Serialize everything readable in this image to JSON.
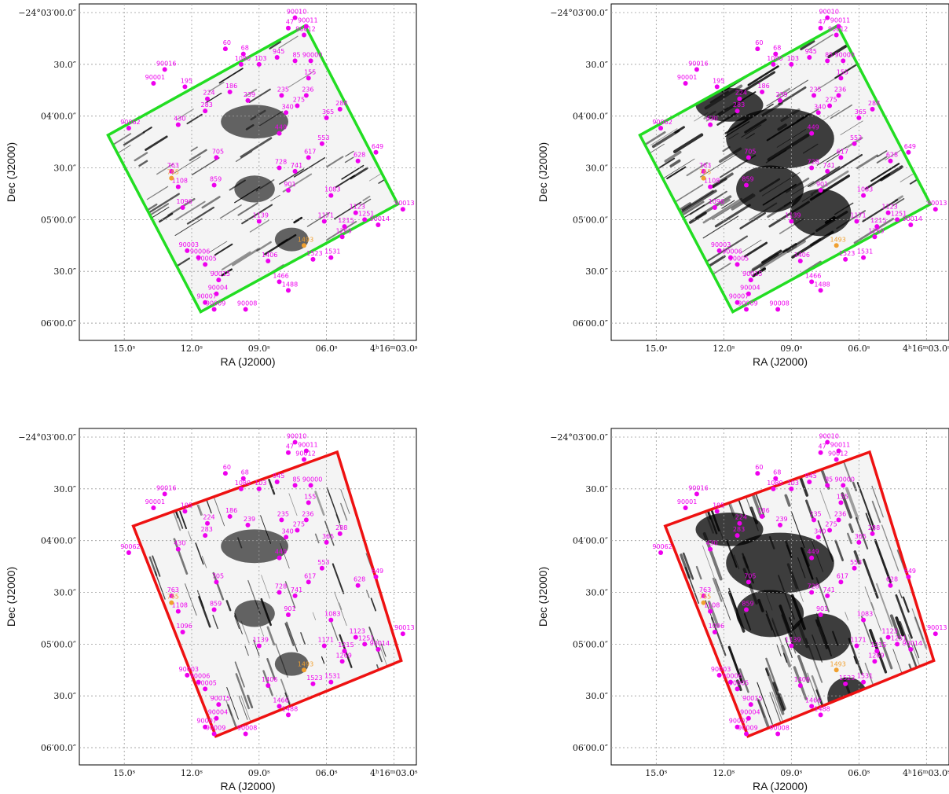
{
  "colors": {
    "source_marker": "#ee00ee",
    "highlight_marker": "#f0a030",
    "green_footprint": "#22dd22",
    "red_footprint": "#ee1111",
    "grid": "#9a9a9a",
    "streak": "#000000"
  },
  "axes": {
    "xlabel": "RA (J2000)",
    "ylabel": "Dec (J2000)",
    "ra_ticks": [
      {
        "label": "15.0ˢ",
        "ra_sec": 15.0
      },
      {
        "label": "12.0ˢ",
        "ra_sec": 12.0
      },
      {
        "label": "09.0ˢ",
        "ra_sec": 9.0
      },
      {
        "label": "06.0ˢ",
        "ra_sec": 6.0
      },
      {
        "label": "4ʰ16ᵐ03.0ˢ",
        "ra_sec": 3.0
      }
    ],
    "dec_ticks": [
      {
        "label": "−24°03′00.0″",
        "dec_arcsec": 0
      },
      {
        "label": "30.0″",
        "dec_arcsec": 30
      },
      {
        "label": "04′00.0″",
        "dec_arcsec": 60
      },
      {
        "label": "30.0″",
        "dec_arcsec": 90
      },
      {
        "label": "05′00.0″",
        "dec_arcsec": 120
      },
      {
        "label": "30.0″",
        "dec_arcsec": 150
      },
      {
        "label": "06′00.0″",
        "dec_arcsec": 180
      }
    ]
  },
  "chart_data": [
    {
      "type": "scatter",
      "panel": "top-left",
      "footprint_color": "green",
      "footprint_angle_deg": -32,
      "density": "light",
      "xlabel": "RA (J2000)",
      "ylabel": "Dec (J2000)",
      "xlim": [
        17.0,
        2.0
      ],
      "ylim": [
        -5,
        190
      ],
      "grid": true
    },
    {
      "type": "scatter",
      "panel": "top-right",
      "footprint_color": "green",
      "footprint_angle_deg": -32,
      "density": "heavy",
      "xlabel": "RA (J2000)",
      "ylabel": "Dec (J2000)",
      "xlim": [
        17.0,
        2.0
      ],
      "ylim": [
        -5,
        190
      ],
      "grid": true
    },
    {
      "type": "scatter",
      "panel": "bottom-left",
      "footprint_color": "red",
      "footprint_angle_deg": 20,
      "density": "light",
      "xlabel": "RA (J2000)",
      "ylabel": "Dec (J2000)",
      "xlim": [
        17.0,
        2.0
      ],
      "ylim": [
        -5,
        190
      ],
      "grid": true
    },
    {
      "type": "scatter",
      "panel": "bottom-right",
      "footprint_color": "red",
      "footprint_angle_deg": 20,
      "density": "heavy",
      "xlabel": "RA (J2000)",
      "ylabel": "Dec (J2000)",
      "xlim": [
        17.0,
        2.0
      ],
      "ylim": [
        -5,
        190
      ],
      "grid": true
    }
  ],
  "sources": [
    {
      "id": "90010",
      "ra": 7.4,
      "dec": 3
    },
    {
      "id": "47",
      "ra": 7.7,
      "dec": 9
    },
    {
      "id": "90011",
      "ra": 6.9,
      "dec": 8
    },
    {
      "id": "90012",
      "ra": 7.0,
      "dec": 13
    },
    {
      "id": "60",
      "ra": 10.5,
      "dec": 21
    },
    {
      "id": "68",
      "ra": 9.7,
      "dec": 24
    },
    {
      "id": "1080",
      "ra": 9.8,
      "dec": 30
    },
    {
      "id": "103",
      "ra": 9.0,
      "dec": 30
    },
    {
      "id": "945",
      "ra": 8.2,
      "dec": 26
    },
    {
      "id": "85",
      "ra": 7.4,
      "dec": 28
    },
    {
      "id": "90000",
      "ra": 6.7,
      "dec": 28
    },
    {
      "id": "90016",
      "ra": 13.2,
      "dec": 33
    },
    {
      "id": "90001",
      "ra": 13.7,
      "dec": 41
    },
    {
      "id": "195",
      "ra": 12.3,
      "dec": 43
    },
    {
      "id": "155",
      "ra": 6.8,
      "dec": 38
    },
    {
      "id": "186",
      "ra": 10.3,
      "dec": 46
    },
    {
      "id": "224",
      "ra": 11.3,
      "dec": 50
    },
    {
      "id": "239",
      "ra": 9.5,
      "dec": 51
    },
    {
      "id": "235",
      "ra": 8.0,
      "dec": 48
    },
    {
      "id": "236",
      "ra": 6.9,
      "dec": 48
    },
    {
      "id": "275",
      "ra": 7.3,
      "dec": 54
    },
    {
      "id": "283",
      "ra": 11.4,
      "dec": 57
    },
    {
      "id": "288",
      "ra": 5.4,
      "dec": 56
    },
    {
      "id": "340",
      "ra": 7.8,
      "dec": 58
    },
    {
      "id": "365",
      "ra": 6.0,
      "dec": 61
    },
    {
      "id": "90062",
      "ra": 14.8,
      "dec": 67
    },
    {
      "id": "430",
      "ra": 12.6,
      "dec": 65
    },
    {
      "id": "449",
      "ra": 8.1,
      "dec": 70
    },
    {
      "id": "553",
      "ra": 6.2,
      "dec": 76
    },
    {
      "id": "617",
      "ra": 6.8,
      "dec": 84
    },
    {
      "id": "649",
      "ra": 3.8,
      "dec": 81
    },
    {
      "id": "628",
      "ra": 4.6,
      "dec": 86
    },
    {
      "id": "705",
      "ra": 10.9,
      "dec": 84
    },
    {
      "id": "741",
      "ra": 7.4,
      "dec": 92
    },
    {
      "id": "763",
      "ra": 12.9,
      "dec": 92
    },
    {
      "id": "728",
      "ra": 8.1,
      "dec": 90
    },
    {
      "id": "859",
      "ra": 11.0,
      "dec": 100
    },
    {
      "id": "901",
      "ra": 7.7,
      "dec": 103
    },
    {
      "id": "1083",
      "ra": 5.8,
      "dec": 106
    },
    {
      "id": "1108",
      "ra": 12.6,
      "dec": 101
    },
    {
      "id": "1096",
      "ra": 12.4,
      "dec": 113
    },
    {
      "id": "1139",
      "ra": 9.0,
      "dec": 121
    },
    {
      "id": "1171",
      "ra": 6.1,
      "dec": 121
    },
    {
      "id": "1123",
      "ra": 4.7,
      "dec": 116
    },
    {
      "id": "1215",
      "ra": 5.2,
      "dec": 124
    },
    {
      "id": "1269",
      "ra": 5.3,
      "dec": 130
    },
    {
      "id": "90013",
      "ra": 2.6,
      "dec": 114
    },
    {
      "id": "90014",
      "ra": 3.7,
      "dec": 123
    },
    {
      "id": "90003",
      "ra": 12.2,
      "dec": 138
    },
    {
      "id": "90006",
      "ra": 11.7,
      "dec": 142
    },
    {
      "id": "90005",
      "ra": 11.4,
      "dec": 146
    },
    {
      "id": "1406",
      "ra": 8.6,
      "dec": 144
    },
    {
      "id": "1466",
      "ra": 8.1,
      "dec": 156
    },
    {
      "id": "1488",
      "ra": 7.7,
      "dec": 161
    },
    {
      "id": "1523",
      "ra": 6.6,
      "dec": 143
    },
    {
      "id": "1531",
      "ra": 5.8,
      "dec": 142
    },
    {
      "id": "90015",
      "ra": 10.8,
      "dec": 155
    },
    {
      "id": "90004",
      "ra": 10.9,
      "dec": 163
    },
    {
      "id": "90007",
      "ra": 11.4,
      "dec": 168
    },
    {
      "id": "90009",
      "ra": 11.0,
      "dec": 172
    },
    {
      "id": "90008",
      "ra": 9.6,
      "dec": 172
    },
    {
      "id": "1251",
      "ra": 4.3,
      "dec": 120
    }
  ],
  "highlight_sources": [
    {
      "id": "765",
      "ra": 12.9,
      "dec": 96
    },
    {
      "id": "1493",
      "ra": 7.0,
      "dec": 135
    }
  ]
}
